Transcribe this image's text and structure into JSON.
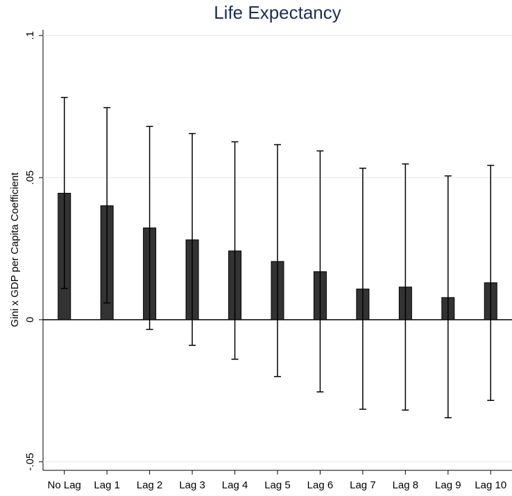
{
  "chart_data": {
    "type": "bar",
    "title": "Life Expectancy",
    "y_label": "Gini x GDP per Capita Coefficient",
    "categories": [
      "No Lag",
      "Lag 1",
      "Lag 2",
      "Lag 3",
      "Lag 4",
      "Lag 5",
      "Lag 6",
      "Lag 7",
      "Lag 8",
      "Lag 9",
      "Lag 10"
    ],
    "values": [
      0.0445,
      0.0401,
      0.0323,
      0.0281,
      0.0242,
      0.0205,
      0.0169,
      0.0108,
      0.0115,
      0.0078,
      0.013
    ],
    "ci_lower": [
      0.011,
      0.0059,
      -0.0034,
      -0.009,
      -0.0139,
      -0.02,
      -0.0254,
      -0.0315,
      -0.0318,
      -0.0345,
      -0.0284
    ],
    "ci_upper": [
      0.0782,
      0.0746,
      0.068,
      0.0655,
      0.0626,
      0.0616,
      0.0594,
      0.0533,
      0.0548,
      0.0506,
      0.0543
    ],
    "color": "#333333",
    "ylim": [
      -0.053,
      0.102
    ],
    "yticks": [
      {
        "value": -0.05,
        "label": "-.05"
      },
      0,
      {
        "value": 0.05,
        "label": ".05"
      },
      {
        "value": 0.1,
        "label": ".1"
      }
    ],
    "grid": true
  }
}
